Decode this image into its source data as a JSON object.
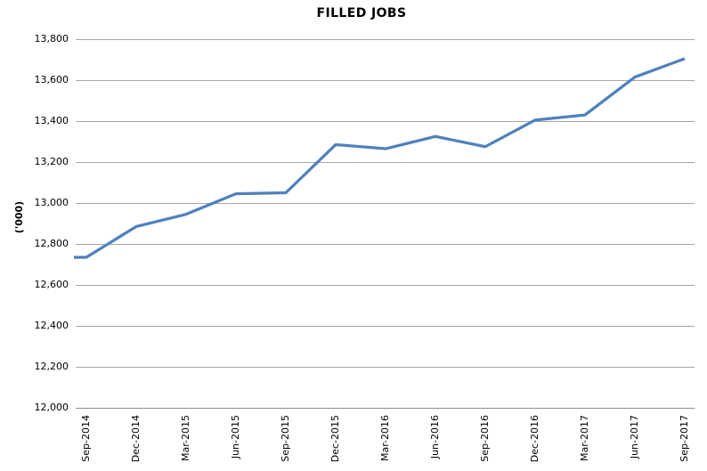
{
  "chart_data": {
    "type": "line",
    "title": "FILLED JOBS",
    "ylabel": "('000)",
    "xlabel": "",
    "categories": [
      "Sep-2014",
      "Dec-2014",
      "Mar-2015",
      "Jun-2015",
      "Sep-2015",
      "Dec-2015",
      "Mar-2016",
      "Jun-2016",
      "Sep-2016",
      "Dec-2016",
      "Mar-2017",
      "Jun-2017",
      "Sep-2017"
    ],
    "values": [
      12735,
      12885,
      12945,
      13045,
      13050,
      13285,
      13265,
      13325,
      13275,
      13405,
      13430,
      13615,
      13705
    ],
    "ylim": [
      12000,
      13800
    ],
    "ytick_step": 200,
    "ytick_labels": [
      "13,800",
      "13,600",
      "13,400",
      "13,200",
      "13,000",
      "12,800",
      "12,600",
      "12,400",
      "12,200",
      "12,000"
    ],
    "grid": "horizontal",
    "legend": "none",
    "colors": {
      "series_line": "#4F81BD",
      "gridline": "#A6A6A6",
      "axis_line": "#8C8C8C",
      "text": "#000000",
      "background": "#FFFFFF"
    }
  }
}
